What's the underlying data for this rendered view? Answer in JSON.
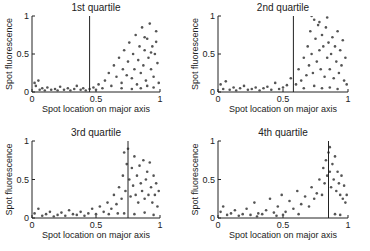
{
  "chart_data": [
    {
      "type": "scatter",
      "title": "1st quartile",
      "x_label": "Spot location on major axis",
      "y_label": "Spot fluorescence",
      "xlim": [
        0,
        1
      ],
      "ylim": [
        0,
        1
      ],
      "xticks": [
        0,
        0.5,
        1
      ],
      "yticks": [
        0,
        0.5,
        1
      ],
      "vline": 0.45,
      "series": [
        {
          "color": "#555555",
          "marker": "circle",
          "x": [
            0.02,
            0.03,
            0.05,
            0.06,
            0.08,
            0.1,
            0.12,
            0.15,
            0.18,
            0.2,
            0.22,
            0.25,
            0.28,
            0.3,
            0.33,
            0.35,
            0.38,
            0.4,
            0.42,
            0.45,
            0.48,
            0.5,
            0.52,
            0.55,
            0.57,
            0.6,
            0.62,
            0.64,
            0.66,
            0.68,
            0.7,
            0.71,
            0.72,
            0.74,
            0.75,
            0.76,
            0.78,
            0.79,
            0.8,
            0.81,
            0.82,
            0.83,
            0.84,
            0.85,
            0.86,
            0.87,
            0.88,
            0.89,
            0.9,
            0.91,
            0.92,
            0.93,
            0.94,
            0.95,
            0.96,
            0.97,
            0.98,
            0.99,
            0.85,
            0.9,
            0.95,
            0.78,
            0.7,
            0.88,
            0.93,
            0.97
          ],
          "values": [
            0.12,
            0.08,
            0.15,
            0.03,
            0.05,
            0.02,
            0.06,
            0.03,
            0.04,
            0.02,
            0.07,
            0.03,
            0.05,
            0.02,
            0.04,
            0.08,
            0.03,
            0.05,
            0.02,
            0.04,
            0.06,
            0.03,
            0.1,
            0.05,
            0.15,
            0.25,
            0.08,
            0.35,
            0.2,
            0.45,
            0.12,
            0.3,
            0.55,
            0.22,
            0.4,
            0.65,
            0.18,
            0.5,
            0.3,
            0.75,
            0.1,
            0.42,
            0.6,
            0.25,
            0.85,
            0.35,
            0.55,
            0.15,
            0.7,
            0.45,
            0.9,
            0.3,
            0.6,
            0.2,
            0.5,
            0.8,
            0.38,
            0.12,
            0.05,
            0.08,
            0.06,
            0.04,
            0.05,
            0.72,
            0.52,
            0.66
          ]
        }
      ]
    },
    {
      "type": "scatter",
      "title": "2nd quartile",
      "x_label": "Spot location on major axis",
      "y_label": "Spot fluorescence",
      "xlim": [
        0,
        1
      ],
      "ylim": [
        0,
        1
      ],
      "xticks": [
        0,
        0.5,
        1
      ],
      "yticks": [
        0,
        0.5,
        1
      ],
      "vline": 0.58,
      "series": [
        {
          "color": "#555555",
          "marker": "circle",
          "x": [
            0.02,
            0.04,
            0.06,
            0.09,
            0.12,
            0.14,
            0.17,
            0.2,
            0.23,
            0.26,
            0.29,
            0.32,
            0.35,
            0.38,
            0.41,
            0.44,
            0.47,
            0.5,
            0.53,
            0.56,
            0.6,
            0.62,
            0.64,
            0.66,
            0.68,
            0.69,
            0.7,
            0.71,
            0.72,
            0.73,
            0.74,
            0.75,
            0.76,
            0.77,
            0.78,
            0.79,
            0.8,
            0.81,
            0.82,
            0.83,
            0.84,
            0.85,
            0.86,
            0.87,
            0.88,
            0.89,
            0.9,
            0.91,
            0.92,
            0.93,
            0.94,
            0.95,
            0.96,
            0.97,
            0.98,
            0.99,
            0.74,
            0.8,
            0.86,
            0.92,
            0.66,
            0.72,
            0.78,
            0.84
          ],
          "values": [
            0.1,
            0.04,
            0.14,
            0.03,
            0.06,
            0.02,
            0.05,
            0.08,
            0.03,
            0.04,
            0.06,
            0.02,
            0.05,
            0.07,
            0.03,
            0.12,
            0.04,
            0.06,
            0.09,
            0.18,
            0.1,
            0.3,
            0.15,
            0.45,
            0.22,
            0.6,
            0.35,
            0.8,
            0.5,
            0.25,
            0.95,
            0.7,
            0.4,
            0.88,
            0.55,
            0.3,
            0.75,
            0.6,
            0.2,
            0.85,
            0.45,
            0.65,
            0.3,
            0.5,
            0.72,
            0.18,
            0.6,
            0.4,
            0.8,
            0.25,
            0.55,
            0.35,
            0.68,
            0.15,
            0.45,
            0.1,
            0.08,
            0.05,
            0.06,
            0.04,
            0.05,
            1.0,
            0.92,
            0.98
          ]
        }
      ]
    },
    {
      "type": "scatter",
      "title": "3rd quartile",
      "x_label": "Spot location on major axis",
      "y_label": "Spot fluorescence",
      "xlim": [
        0,
        1
      ],
      "ylim": [
        0,
        1
      ],
      "xticks": [
        0,
        0.5,
        1
      ],
      "yticks": [
        0,
        0.5,
        1
      ],
      "vline": 0.75,
      "series": [
        {
          "color": "#555555",
          "marker": "circle",
          "x": [
            0.02,
            0.05,
            0.08,
            0.11,
            0.14,
            0.17,
            0.2,
            0.23,
            0.26,
            0.29,
            0.32,
            0.35,
            0.38,
            0.41,
            0.44,
            0.47,
            0.5,
            0.53,
            0.56,
            0.59,
            0.62,
            0.64,
            0.66,
            0.68,
            0.7,
            0.71,
            0.72,
            0.73,
            0.74,
            0.76,
            0.77,
            0.78,
            0.79,
            0.8,
            0.81,
            0.82,
            0.83,
            0.84,
            0.85,
            0.86,
            0.87,
            0.88,
            0.89,
            0.9,
            0.91,
            0.92,
            0.93,
            0.94,
            0.95,
            0.96,
            0.97,
            0.98,
            0.99,
            0.72,
            0.8,
            0.88,
            0.95,
            0.6,
            0.67,
            0.75
          ],
          "values": [
            0.06,
            0.12,
            0.03,
            0.05,
            0.08,
            0.02,
            0.04,
            0.07,
            0.03,
            0.1,
            0.05,
            0.04,
            0.08,
            0.03,
            0.06,
            0.12,
            0.05,
            0.15,
            0.08,
            0.2,
            0.12,
            0.3,
            0.18,
            0.4,
            0.25,
            0.55,
            0.85,
            0.35,
            0.7,
            0.5,
            0.28,
            0.65,
            0.42,
            0.8,
            0.3,
            0.55,
            0.2,
            0.68,
            0.45,
            0.35,
            0.75,
            0.25,
            0.5,
            0.6,
            0.3,
            0.72,
            0.4,
            0.2,
            0.55,
            0.3,
            0.45,
            0.15,
            0.35,
            0.06,
            0.05,
            0.07,
            0.04,
            0.05,
            0.06,
            0.9
          ]
        }
      ]
    },
    {
      "type": "scatter",
      "title": "4th quartile",
      "x_label": "Spot location on major axis",
      "y_label": "Spot fluorescence",
      "xlim": [
        0,
        1
      ],
      "ylim": [
        0,
        1
      ],
      "xticks": [
        0,
        0.5,
        1
      ],
      "yticks": [
        0,
        0.5,
        1
      ],
      "vline": 0.85,
      "series": [
        {
          "color": "#555555",
          "marker": "circle",
          "x": [
            0.02,
            0.04,
            0.07,
            0.1,
            0.13,
            0.16,
            0.19,
            0.22,
            0.25,
            0.28,
            0.31,
            0.34,
            0.37,
            0.4,
            0.43,
            0.46,
            0.49,
            0.52,
            0.55,
            0.58,
            0.61,
            0.64,
            0.67,
            0.7,
            0.72,
            0.74,
            0.76,
            0.78,
            0.8,
            0.81,
            0.82,
            0.83,
            0.84,
            0.85,
            0.86,
            0.87,
            0.88,
            0.89,
            0.9,
            0.91,
            0.92,
            0.93,
            0.94,
            0.95,
            0.96,
            0.97,
            0.98,
            0.99,
            0.3,
            0.45,
            0.5,
            0.62,
            0.86,
            0.9,
            0.94
          ],
          "values": [
            0.08,
            0.15,
            0.04,
            0.06,
            0.1,
            0.03,
            0.05,
            0.12,
            0.04,
            0.2,
            0.06,
            0.05,
            0.1,
            0.25,
            0.07,
            0.15,
            0.3,
            0.08,
            0.22,
            0.12,
            0.35,
            0.18,
            0.28,
            0.15,
            0.4,
            0.25,
            0.32,
            0.5,
            0.3,
            0.65,
            0.45,
            0.75,
            0.55,
            0.85,
            0.6,
            0.4,
            0.7,
            0.5,
            0.8,
            0.35,
            0.6,
            0.45,
            0.3,
            0.55,
            0.25,
            0.42,
            0.2,
            0.3,
            0.02,
            0.03,
            0.04,
            0.05,
            0.92,
            0.05,
            0.04
          ]
        }
      ]
    }
  ]
}
